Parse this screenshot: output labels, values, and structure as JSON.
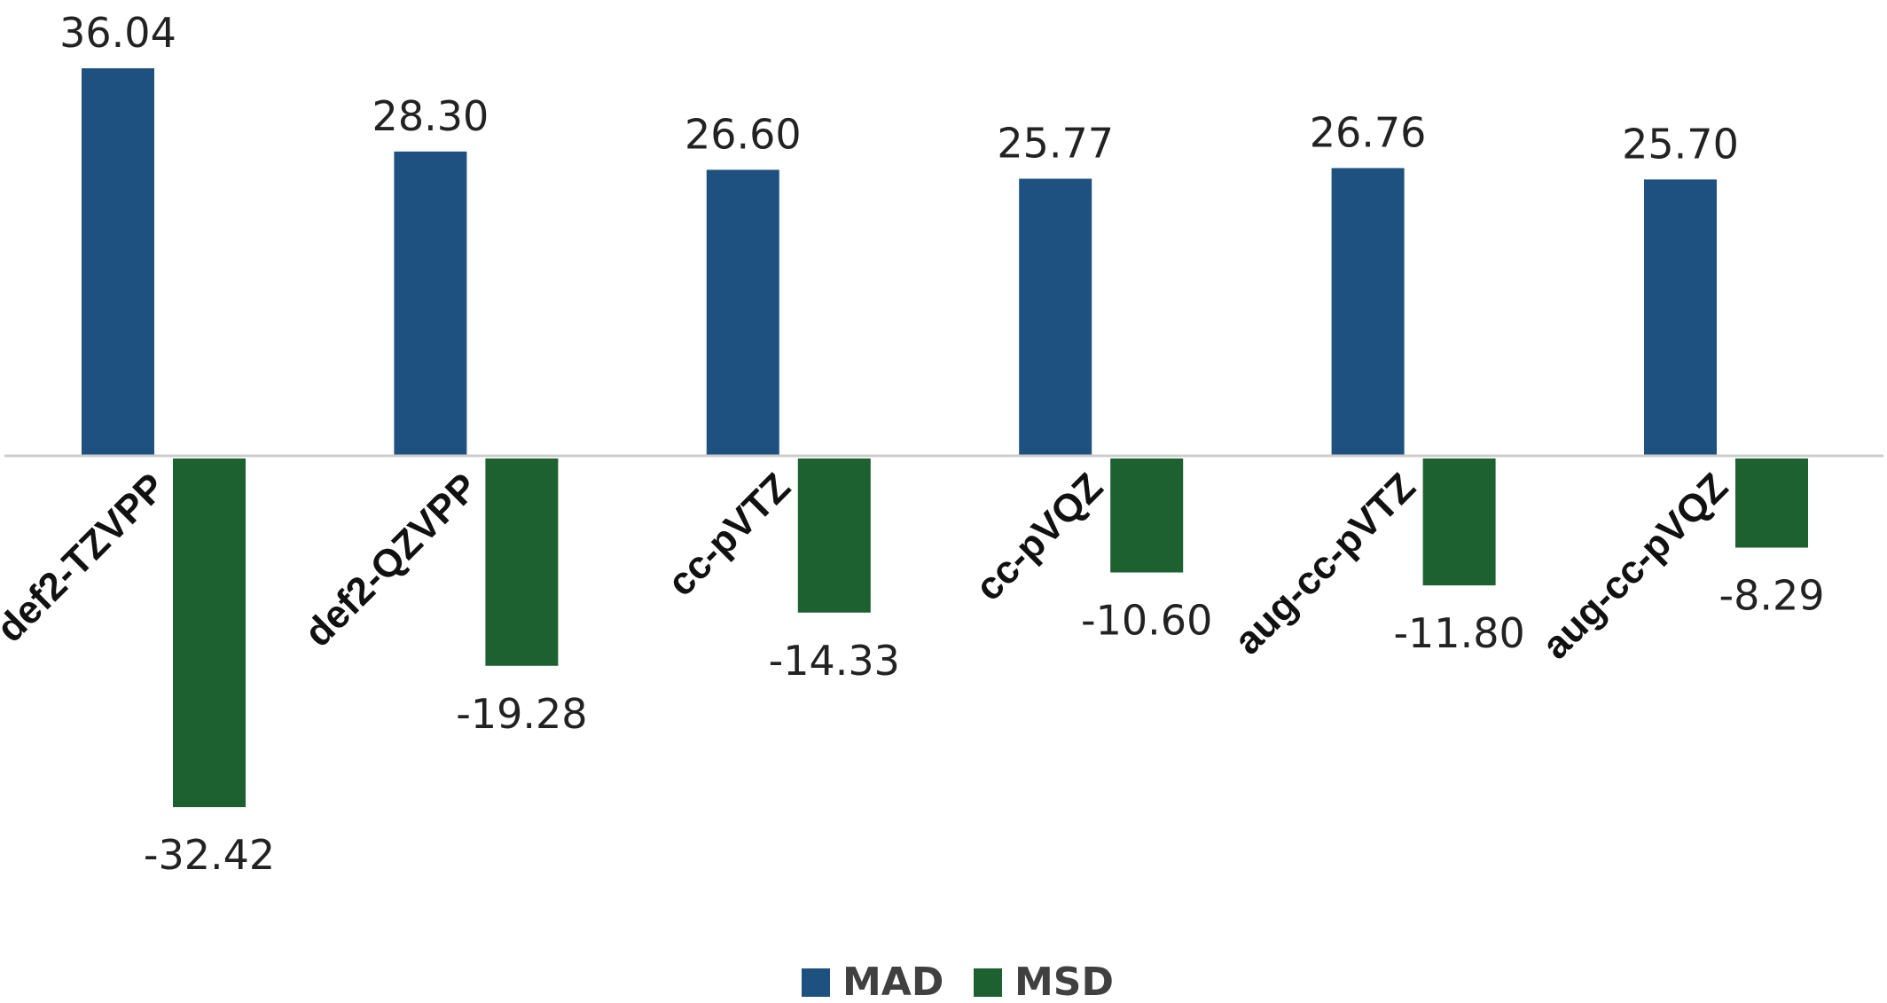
{
  "chart_data": {
    "type": "bar",
    "categories": [
      "def2-TZVPP",
      "def2-QZVPP",
      "cc-pVTZ",
      "cc-pVQZ",
      "aug-cc-pVTZ",
      "aug-cc-pVQZ"
    ],
    "series": [
      {
        "name": "MAD",
        "values": [
          36.04,
          28.3,
          26.6,
          25.77,
          26.76,
          25.7
        ],
        "labels": [
          "36.04",
          "28.30",
          "26.60",
          "25.77",
          "26.76",
          "25.70"
        ],
        "color": "#1f5180"
      },
      {
        "name": "MSD",
        "values": [
          -32.42,
          -19.28,
          -14.33,
          -10.6,
          -11.8,
          -8.29
        ],
        "labels": [
          "-32.42",
          "-19.28",
          "-14.33",
          "-10.60",
          "-11.80",
          "-8.29"
        ],
        "color": "#1e6130"
      }
    ],
    "title": "",
    "xlabel": "",
    "ylabel": "",
    "ylim": [
      -32.42,
      36.04
    ],
    "grid": false,
    "legend_position": "bottom"
  },
  "colors": {
    "axis": "#cccccc"
  }
}
